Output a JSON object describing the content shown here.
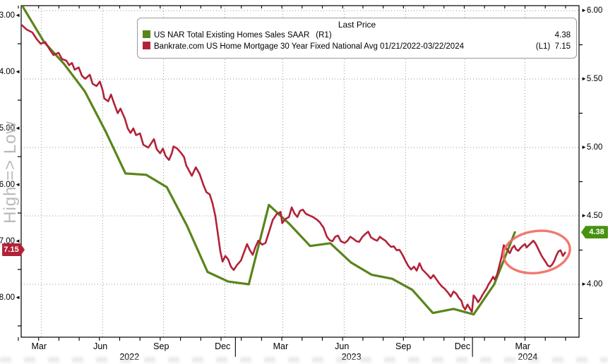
{
  "watermark": "High => Low",
  "legend": {
    "title": "Last Price",
    "rows": [
      {
        "name": "US NAR Total Existing Homes Sales SAAR",
        "tag": "(R1)",
        "price": "4.38",
        "color": "#5a851b"
      },
      {
        "name": "Bankrate.com US Home Mortgage 30 Year Fixed National Avg 01/21/2022-03/22/2024",
        "tag": "(L1)",
        "price": "7.15",
        "color": "#b22237"
      }
    ]
  },
  "chart_data": {
    "type": "line",
    "title": "Last Price",
    "left_axis": {
      "label_ticks": [
        "3.00",
        "4.00",
        "5.00",
        "6.00",
        "7.00",
        "8.00"
      ],
      "range": [
        3.0,
        8.0
      ],
      "orientation": "values increase downward (High => Low inverted)",
      "badge": "7.15",
      "badge_value": 7.15,
      "minor_step": 0.5
    },
    "right_axis": {
      "label_ticks": [
        "6.00",
        "5.50",
        "5.00",
        "4.50",
        "4.00"
      ],
      "range": [
        6.04,
        3.61
      ],
      "badge": "4.38",
      "badge_value": 4.38,
      "minor_step": 0.25
    },
    "x_axis": {
      "month_ticks": [
        {
          "label": "Mar",
          "pct": 3.2
        },
        {
          "label": "Jun",
          "pct": 14.2
        },
        {
          "label": "Sep",
          "pct": 25.1
        },
        {
          "label": "Dec",
          "pct": 36.1
        },
        {
          "label": "Mar",
          "pct": 46.5
        },
        {
          "label": "Jun",
          "pct": 57.5
        },
        {
          "label": "Sep",
          "pct": 68.5
        },
        {
          "label": "Dec",
          "pct": 79.1
        },
        {
          "label": "Mar",
          "pct": 89.9
        }
      ],
      "year_labels": [
        {
          "label": "2022",
          "pct": 19.4
        },
        {
          "label": "2023",
          "pct": 59.2
        },
        {
          "label": "2024",
          "pct": 90.8
        }
      ],
      "year_separators_pct": [
        38.4,
        80.9
      ],
      "range_text": "01/21/2022 - 03/22/2024"
    },
    "grid": {
      "h_lines_right_values": [
        6.0,
        5.5,
        5.0,
        4.5,
        4.0
      ],
      "v_lines_pct": [
        3.6,
        14.6,
        25.5,
        36.5,
        46.9,
        57.9,
        68.9,
        79.5,
        90.3
      ]
    },
    "series": [
      {
        "name": "US NAR Total Existing Homes Sales SAAR",
        "axis": "right",
        "tag": "(R1)",
        "last_price": 4.38,
        "color": "#5a851b",
        "unit": "million (SAAR)",
        "months": [
          "Jan-22",
          "Feb-22",
          "Mar-22",
          "Apr-22",
          "May-22",
          "Jun-22",
          "Jul-22",
          "Aug-22",
          "Sep-22",
          "Oct-22",
          "Nov-22",
          "Dec-22",
          "Jan-23",
          "Feb-23",
          "Mar-23",
          "Apr-23",
          "May-23",
          "Jun-23",
          "Jul-23",
          "Aug-23",
          "Sep-23",
          "Oct-23",
          "Nov-23",
          "Dec-23",
          "Jan-24",
          "Feb-24"
        ],
        "points": [
          [
            -3.7,
            6.49
          ],
          [
            0.4,
            6.02
          ],
          [
            4.1,
            5.77
          ],
          [
            7.7,
            5.61
          ],
          [
            11.4,
            5.41
          ],
          [
            15.1,
            5.12
          ],
          [
            18.7,
            4.81
          ],
          [
            22.4,
            4.8
          ],
          [
            26.1,
            4.71
          ],
          [
            29.7,
            4.43
          ],
          [
            33.4,
            4.09
          ],
          [
            37.1,
            4.02
          ],
          [
            40.8,
            4.0
          ],
          [
            44.4,
            4.58
          ],
          [
            48.1,
            4.44
          ],
          [
            51.8,
            4.28
          ],
          [
            55.4,
            4.3
          ],
          [
            59.1,
            4.16
          ],
          [
            62.8,
            4.07
          ],
          [
            66.5,
            4.04
          ],
          [
            70.1,
            3.96
          ],
          [
            73.8,
            3.79
          ],
          [
            77.5,
            3.82
          ],
          [
            81.1,
            3.78
          ],
          [
            84.8,
            4.0
          ],
          [
            88.5,
            4.38
          ]
        ]
      },
      {
        "name": "Bankrate.com US Home Mortgage 30 Year Fixed National Avg 01/21/2022-03/22/2024",
        "axis": "left",
        "tag": "(L1)",
        "last_price": 7.15,
        "color": "#b22237",
        "unit": "percent",
        "points": [
          [
            0.0,
            3.16
          ],
          [
            1.0,
            3.25
          ],
          [
            2.0,
            3.3
          ],
          [
            2.8,
            3.42
          ],
          [
            3.5,
            3.5
          ],
          [
            4.3,
            3.47
          ],
          [
            5.1,
            3.6
          ],
          [
            5.8,
            3.7
          ],
          [
            6.7,
            3.66
          ],
          [
            7.3,
            3.77
          ],
          [
            8.1,
            3.8
          ],
          [
            8.6,
            3.88
          ],
          [
            9.1,
            3.84
          ],
          [
            9.6,
            3.96
          ],
          [
            10.3,
            3.92
          ],
          [
            10.9,
            4.07
          ],
          [
            11.5,
            4.12
          ],
          [
            12.3,
            4.05
          ],
          [
            12.8,
            4.21
          ],
          [
            13.5,
            4.25
          ],
          [
            14.1,
            4.17
          ],
          [
            14.6,
            4.32
          ],
          [
            14.9,
            4.47
          ],
          [
            15.6,
            4.52
          ],
          [
            16.1,
            4.4
          ],
          [
            16.7,
            4.57
          ],
          [
            17.3,
            4.73
          ],
          [
            17.8,
            4.65
          ],
          [
            18.6,
            4.83
          ],
          [
            19.1,
            5.0
          ],
          [
            19.6,
            5.08
          ],
          [
            20.1,
            5.0
          ],
          [
            20.6,
            5.12
          ],
          [
            21.3,
            5.09
          ],
          [
            21.9,
            5.29
          ],
          [
            22.8,
            5.34
          ],
          [
            23.4,
            5.25
          ],
          [
            23.8,
            5.19
          ],
          [
            24.3,
            5.37
          ],
          [
            24.9,
            5.44
          ],
          [
            25.4,
            5.36
          ],
          [
            25.9,
            5.49
          ],
          [
            26.5,
            5.56
          ],
          [
            27.0,
            5.44
          ],
          [
            27.3,
            5.32
          ],
          [
            28.0,
            5.36
          ],
          [
            28.7,
            5.44
          ],
          [
            29.2,
            5.51
          ],
          [
            29.6,
            5.66
          ],
          [
            30.1,
            5.75
          ],
          [
            30.6,
            5.84
          ],
          [
            31.3,
            5.69
          ],
          [
            32.0,
            5.81
          ],
          [
            32.7,
            6.01
          ],
          [
            33.2,
            6.13
          ],
          [
            33.8,
            6.17
          ],
          [
            34.3,
            6.33
          ],
          [
            34.8,
            6.55
          ],
          [
            35.3,
            6.9
          ],
          [
            35.7,
            7.18
          ],
          [
            36.1,
            7.36
          ],
          [
            36.6,
            7.26
          ],
          [
            37.1,
            7.32
          ],
          [
            37.6,
            7.45
          ],
          [
            38.1,
            7.51
          ],
          [
            38.7,
            7.42
          ],
          [
            39.4,
            7.34
          ],
          [
            40.0,
            7.18
          ],
          [
            40.5,
            7.05
          ],
          [
            41.0,
            7.16
          ],
          [
            41.5,
            7.24
          ],
          [
            42.0,
            7.1
          ],
          [
            42.5,
            6.99
          ],
          [
            43.2,
            7.06
          ],
          [
            43.8,
            7.03
          ],
          [
            44.4,
            6.84
          ],
          [
            45.1,
            6.62
          ],
          [
            45.8,
            6.52
          ],
          [
            46.5,
            6.48
          ],
          [
            46.8,
            6.68
          ],
          [
            47.3,
            6.61
          ],
          [
            48.0,
            6.57
          ],
          [
            48.5,
            6.4
          ],
          [
            49.0,
            6.51
          ],
          [
            49.5,
            6.57
          ],
          [
            50.0,
            6.46
          ],
          [
            50.5,
            6.44
          ],
          [
            51.0,
            6.51
          ],
          [
            51.6,
            6.54
          ],
          [
            52.3,
            6.57
          ],
          [
            52.9,
            6.61
          ],
          [
            53.5,
            6.66
          ],
          [
            54.2,
            6.76
          ],
          [
            54.8,
            6.92
          ],
          [
            55.3,
            6.98
          ],
          [
            55.8,
            7.0
          ],
          [
            56.3,
            6.92
          ],
          [
            56.8,
            6.9
          ],
          [
            57.3,
            7.0
          ],
          [
            58.0,
            7.03
          ],
          [
            58.5,
            6.99
          ],
          [
            59.0,
            6.92
          ],
          [
            59.6,
            6.96
          ],
          [
            60.1,
            7.0
          ],
          [
            60.6,
            7.01
          ],
          [
            61.1,
            6.93
          ],
          [
            61.6,
            6.88
          ],
          [
            62.2,
            6.83
          ],
          [
            62.7,
            6.93
          ],
          [
            63.3,
            6.97
          ],
          [
            63.8,
            6.99
          ],
          [
            64.3,
            6.92
          ],
          [
            64.8,
            6.96
          ],
          [
            65.3,
            6.99
          ],
          [
            65.8,
            7.05
          ],
          [
            66.3,
            7.1
          ],
          [
            66.8,
            7.09
          ],
          [
            67.3,
            7.16
          ],
          [
            67.8,
            7.15
          ],
          [
            68.4,
            7.25
          ],
          [
            68.9,
            7.35
          ],
          [
            69.4,
            7.44
          ],
          [
            69.9,
            7.5
          ],
          [
            70.4,
            7.45
          ],
          [
            70.9,
            7.52
          ],
          [
            71.4,
            7.39
          ],
          [
            71.9,
            7.5
          ],
          [
            72.4,
            7.55
          ],
          [
            72.9,
            7.6
          ],
          [
            73.4,
            7.66
          ],
          [
            73.9,
            7.6
          ],
          [
            74.4,
            7.67
          ],
          [
            74.9,
            7.74
          ],
          [
            75.4,
            7.8
          ],
          [
            75.9,
            7.84
          ],
          [
            76.5,
            7.91
          ],
          [
            77.0,
            7.98
          ],
          [
            77.5,
            7.89
          ],
          [
            78.0,
            7.93
          ],
          [
            78.5,
            8.01
          ],
          [
            78.9,
            8.05
          ],
          [
            79.2,
            8.15
          ],
          [
            79.6,
            8.21
          ],
          [
            80.0,
            8.12
          ],
          [
            80.4,
            8.19
          ],
          [
            80.8,
            8.25
          ],
          [
            81.1,
            7.96
          ],
          [
            81.5,
            8.01
          ],
          [
            81.9,
            8.08
          ],
          [
            82.3,
            8.02
          ],
          [
            82.7,
            7.95
          ],
          [
            83.0,
            7.9
          ],
          [
            83.4,
            7.84
          ],
          [
            83.8,
            7.76
          ],
          [
            84.2,
            7.7
          ],
          [
            84.6,
            7.63
          ],
          [
            84.9,
            7.68
          ],
          [
            85.3,
            7.59
          ],
          [
            85.7,
            7.44
          ],
          [
            86.1,
            7.28
          ],
          [
            86.5,
            7.07
          ],
          [
            86.8,
            7.11
          ],
          [
            87.2,
            7.16
          ],
          [
            87.6,
            7.21
          ],
          [
            88.0,
            7.12
          ],
          [
            88.4,
            7.08
          ],
          [
            88.7,
            7.14
          ],
          [
            89.1,
            7.17
          ],
          [
            89.5,
            7.12
          ],
          [
            89.9,
            7.08
          ],
          [
            90.3,
            7.05
          ],
          [
            90.6,
            7.11
          ],
          [
            91.0,
            7.07
          ],
          [
            91.4,
            7.03
          ],
          [
            91.8,
            6.99
          ],
          [
            92.2,
            7.04
          ],
          [
            92.5,
            7.1
          ],
          [
            92.9,
            7.18
          ],
          [
            93.3,
            7.26
          ],
          [
            93.7,
            7.32
          ],
          [
            94.1,
            7.38
          ],
          [
            94.4,
            7.43
          ],
          [
            94.8,
            7.45
          ],
          [
            95.2,
            7.41
          ],
          [
            95.6,
            7.34
          ],
          [
            95.9,
            7.26
          ],
          [
            96.3,
            7.18
          ],
          [
            96.7,
            7.16
          ],
          [
            97.1,
            7.26
          ],
          [
            97.5,
            7.2
          ]
        ]
      }
    ],
    "annotation": {
      "type": "ellipse",
      "color": "#ee6a60",
      "cx_pct": 92.4,
      "cy_left_value": 7.19,
      "rx_pct": 6.0,
      "ry_left_units": 0.37,
      "rotate_deg": -8,
      "meaning": "highlights recent mortgage-rate range vs home sales rebound"
    },
    "colors": {
      "grid": "#979797",
      "axis": "#000000",
      "watermark": "#b9b9b9",
      "green_badge": "#479110",
      "red_badge": "#b22237"
    }
  }
}
